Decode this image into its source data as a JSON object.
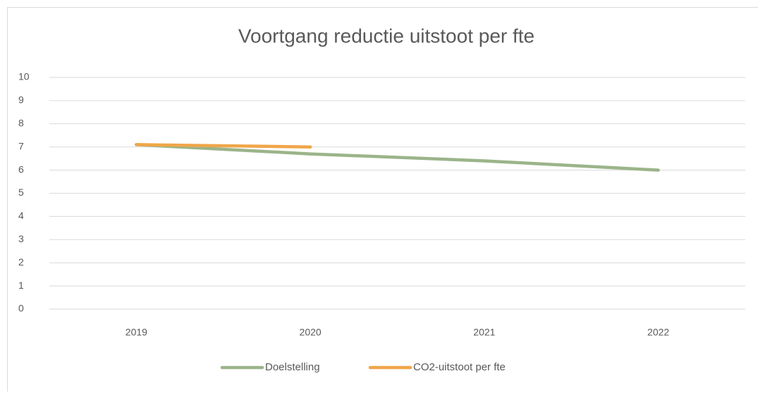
{
  "chart_data": {
    "type": "line",
    "title": "Voortgang reductie uitstoot per fte",
    "categories": [
      "2019",
      "2020",
      "2021",
      "2022"
    ],
    "series": [
      {
        "name": "Doelstelling",
        "color": "#9bb48a",
        "values": [
          7.1,
          6.7,
          6.4,
          6.0
        ]
      },
      {
        "name": "CO2-uitstoot per fte",
        "color": "#f0a64a",
        "values": [
          7.1,
          7.0,
          null,
          null
        ]
      }
    ],
    "ylim": [
      0,
      10
    ],
    "yticks": [
      0,
      1,
      2,
      3,
      4,
      5,
      6,
      7,
      8,
      9,
      10
    ],
    "grid": true,
    "legend": "bottom"
  }
}
